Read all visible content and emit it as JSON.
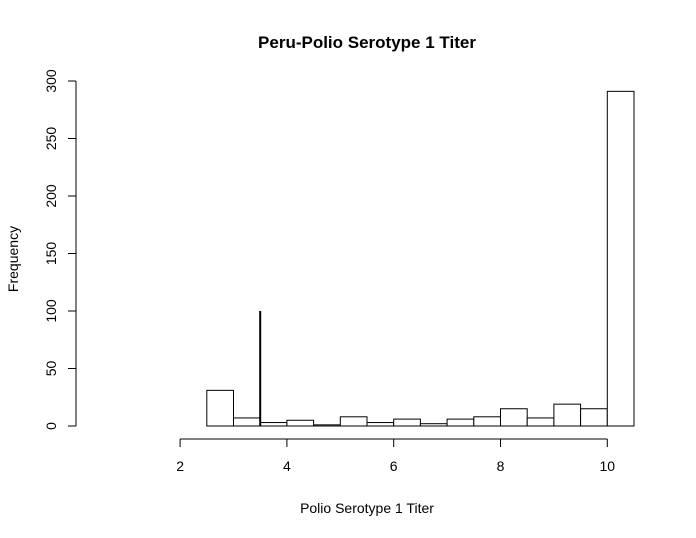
{
  "chart_data": {
    "type": "bar",
    "title": "Peru-Polio Serotype 1 Titer",
    "xlabel": "Polio Serotype 1 Titer",
    "ylabel": "Frequency",
    "xlim": [
      0.5,
      10.5
    ],
    "ylim": [
      0,
      300
    ],
    "xticks": [
      "2",
      "4",
      "6",
      "8",
      "10"
    ],
    "yticks": [
      "0",
      "50",
      "100",
      "150",
      "200",
      "250",
      "300"
    ],
    "bins": [
      {
        "x0": 2.5,
        "x1": 3.0,
        "count": 31
      },
      {
        "x0": 3.0,
        "x1": 3.5,
        "count": 7
      },
      {
        "x0": 3.5,
        "x1": 4.0,
        "count": 3
      },
      {
        "x0": 4.0,
        "x1": 4.5,
        "count": 5
      },
      {
        "x0": 4.5,
        "x1": 5.0,
        "count": 1
      },
      {
        "x0": 5.0,
        "x1": 5.5,
        "count": 8
      },
      {
        "x0": 5.5,
        "x1": 6.0,
        "count": 3
      },
      {
        "x0": 6.0,
        "x1": 6.5,
        "count": 6
      },
      {
        "x0": 6.5,
        "x1": 7.0,
        "count": 2
      },
      {
        "x0": 7.0,
        "x1": 7.5,
        "count": 6
      },
      {
        "x0": 7.5,
        "x1": 8.0,
        "count": 8
      },
      {
        "x0": 8.0,
        "x1": 8.5,
        "count": 15
      },
      {
        "x0": 8.5,
        "x1": 9.0,
        "count": 7
      },
      {
        "x0": 9.0,
        "x1": 9.5,
        "count": 19
      },
      {
        "x0": 9.5,
        "x1": 10.0,
        "count": 15
      },
      {
        "x0": 10.0,
        "x1": 10.5,
        "count": 291
      }
    ],
    "reference_line": {
      "x": 3.5,
      "y0": 0,
      "y1": 100
    },
    "bar_fill": "#ffffff",
    "bar_stroke": "#000000"
  }
}
